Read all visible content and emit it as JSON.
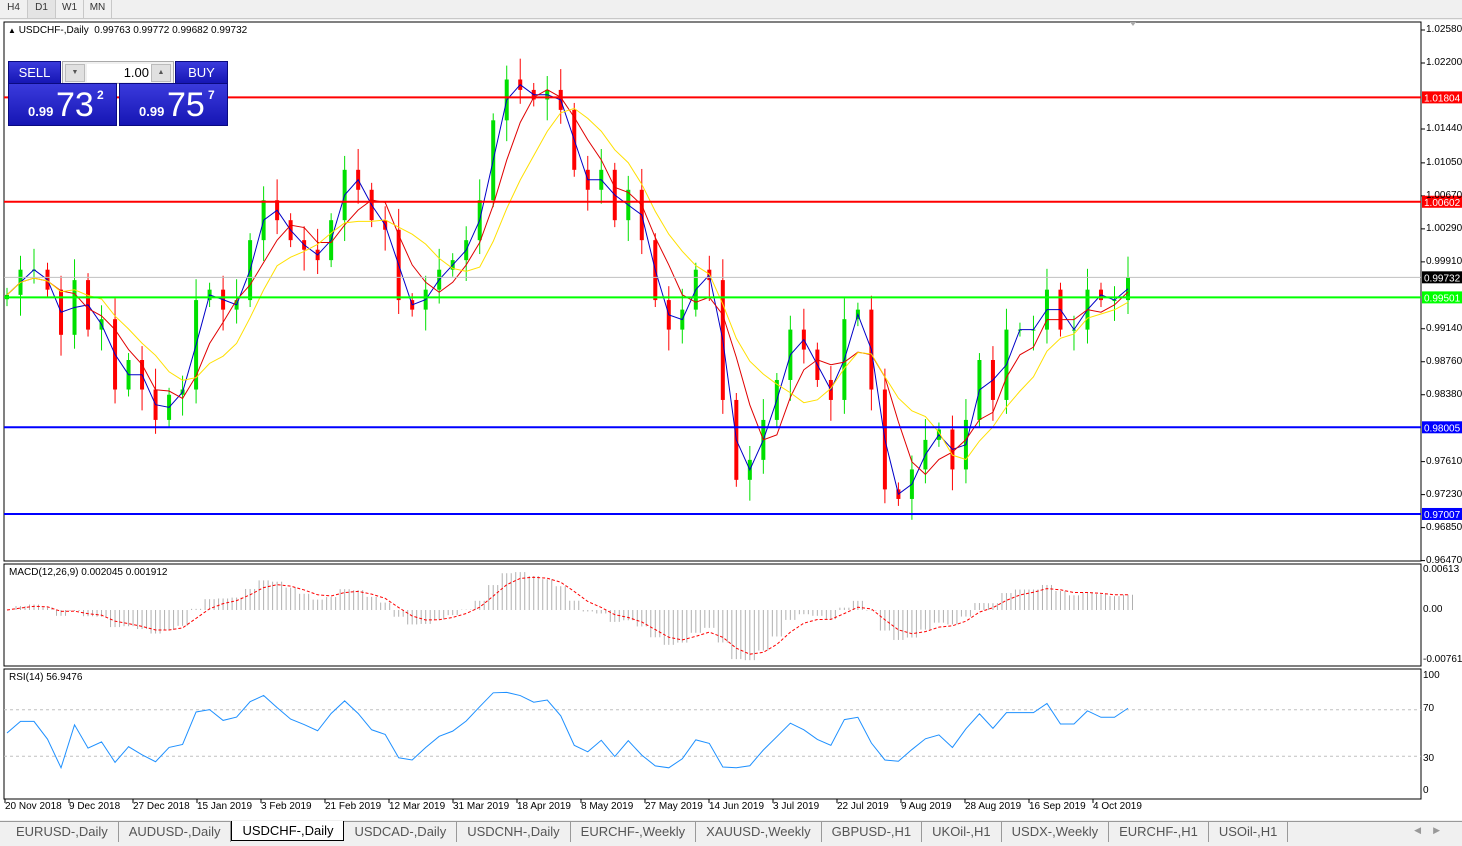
{
  "timeframes": [
    "H4",
    "D1",
    "W1",
    "MN"
  ],
  "active_timeframe": "D1",
  "header": {
    "symbol_info": "USDCHF-,Daily",
    "ohlc": "0.99763 0.99772 0.99682 0.99732"
  },
  "trade_panel": {
    "sell_label": "SELL",
    "buy_label": "BUY",
    "lot": "1.00",
    "sell_prefix": "0.99",
    "sell_big": "73",
    "sell_sup": "2",
    "buy_prefix": "0.99",
    "buy_big": "75",
    "buy_sup": "7"
  },
  "macd": {
    "title": "MACD(12,26,9) 0.002045 0.001912",
    "axis": [
      "0.00613",
      "0.00",
      "-0.007612"
    ]
  },
  "rsi": {
    "title": "RSI(14) 56.9476",
    "axis": [
      "100",
      "70",
      "30",
      "0"
    ]
  },
  "colors": {
    "sell_buy": "#1a1abf",
    "ma_fast": "#0000c8",
    "ma_mid": "#e00000",
    "ma_slow": "#ffe000",
    "bull": "#00e000",
    "bear": "#ff0000",
    "macd_signal": "#ff0000",
    "rsi": "#1e90ff"
  },
  "chart_data": {
    "type": "candlestick",
    "price_ticks": [
      1.0258,
      1.022,
      1.0144,
      1.0105,
      1.0067,
      1.0029,
      0.9991,
      0.9914,
      0.9876,
      0.9838,
      0.9761,
      0.9723,
      0.9685,
      0.9647
    ],
    "ylim": [
      0.9647,
      1.0265
    ],
    "x_ticks": [
      "20 Nov 2018",
      "9 Dec 2018",
      "27 Dec 2018",
      "15 Jan 2019",
      "3 Feb 2019",
      "21 Feb 2019",
      "12 Mar 2019",
      "31 Mar 2019",
      "18 Apr 2019",
      "8 May 2019",
      "27 May 2019",
      "14 Jun 2019",
      "3 Jul 2019",
      "22 Jul 2019",
      "9 Aug 2019",
      "28 Aug 2019",
      "16 Sep 2019",
      "4 Oct 2019"
    ],
    "closes": [
      0.9953,
      0.9982,
      0.9982,
      0.9959,
      0.9907,
      0.997,
      0.9913,
      0.9925,
      0.9844,
      0.9878,
      0.9844,
      0.9809,
      0.9838,
      0.9844,
      0.9947,
      0.9959,
      0.9936,
      0.9947,
      1.0016,
      1.0062,
      1.0039,
      1.0016,
      1.0005,
      0.9993,
      1.0039,
      1.0097,
      1.0074,
      1.0039,
      1.0028,
      0.9947,
      0.9936,
      0.9959,
      0.9982,
      0.9993,
      1.0016,
      1.0062,
      1.0154,
      1.0201,
      1.0189,
      1.0178,
      1.0189,
      1.0166,
      1.0097,
      1.0074,
      1.0097,
      1.0039,
      1.0074,
      1.0016,
      0.9947,
      0.9913,
      0.9936,
      0.9982,
      0.997,
      0.9832,
      0.974,
      0.9763,
      0.9809,
      0.9855,
      0.9913,
      0.989,
      0.9855,
      0.9832,
      0.9925,
      0.9936,
      0.9844,
      0.9729,
      0.9718,
      0.9752,
      0.9786,
      0.9798,
      0.9752,
      0.9809,
      0.9878,
      0.9832,
      0.9913,
      0.9913,
      0.9913,
      0.9959,
      0.9913,
      0.9913,
      0.9959,
      0.9947,
      0.9947,
      0.9973
    ],
    "levels": [
      {
        "price": 1.01804,
        "label": "1.01804",
        "color": "#ff0000"
      },
      {
        "price": 1.00602,
        "label": "1.00602",
        "color": "#ff0000"
      },
      {
        "price": 0.99501,
        "label": "0.99501",
        "color": "#00ff00"
      },
      {
        "price": 0.98005,
        "label": "0.98005",
        "color": "#0000ff"
      },
      {
        "price": 0.97007,
        "label": "0.97007",
        "color": "#0000ff"
      }
    ],
    "current_price": {
      "price": 0.99732,
      "label": "0.99732"
    }
  },
  "symbol_tabs": [
    "EURUSD-,Daily",
    "AUDUSD-,Daily",
    "USDCHF-,Daily",
    "USDCAD-,Daily",
    "USDCNH-,Daily",
    "EURCHF-,Weekly",
    "XAUUSD-,Weekly",
    "GBPUSD-,H1",
    "UKOil-,H1",
    "USDX-,Weekly",
    "EURCHF-,H1",
    "USOil-,H1"
  ],
  "active_tab": "USDCHF-,Daily"
}
